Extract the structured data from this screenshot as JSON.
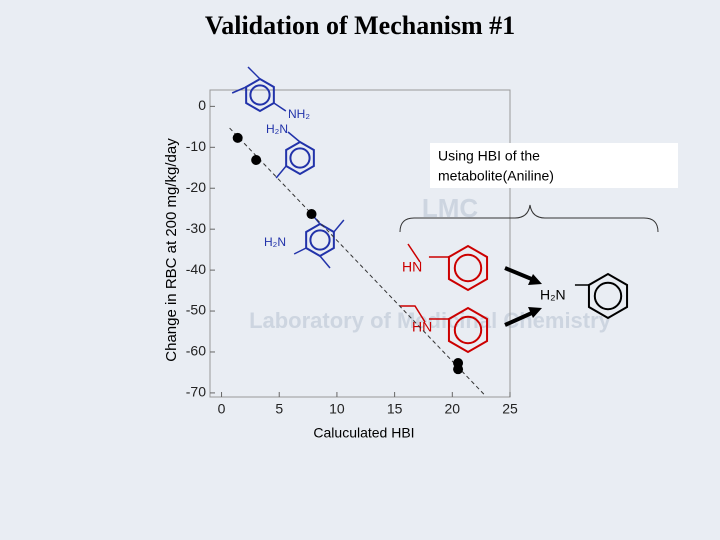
{
  "title": "Validation of Mechanism #1",
  "chart_data": {
    "type": "scatter",
    "xlabel": "Caluculated HBI",
    "ylabel": "Change in RBC at 200 mg/kg/day",
    "x": [
      1.4,
      3.0,
      7.8,
      20.5,
      20.5
    ],
    "values": [
      -7.7,
      -13.1,
      -26.3,
      -62.7,
      -64.2
    ],
    "color": "#000000",
    "trendline": {
      "x": [
        0.7,
        22.8
      ],
      "y": [
        -5.3,
        -70.5
      ]
    },
    "xlim": [
      -1,
      25
    ],
    "ylim": [
      -71,
      4
    ],
    "xticks": [
      0,
      5,
      10,
      15,
      20,
      25
    ],
    "yticks": [
      0,
      -10,
      -20,
      -30,
      -40,
      -50,
      -60,
      -70
    ]
  },
  "callout": {
    "lines": [
      "Using HBI of the",
      "metabolite(Aniline)"
    ]
  },
  "structure_labels": [
    "NH₂",
    "H₂N",
    "H₂N",
    "HN",
    "HN",
    "H₂N"
  ],
  "watermark": {
    "logo": "LMC",
    "lab": "Laboratory of Medicinal Chemistry"
  }
}
